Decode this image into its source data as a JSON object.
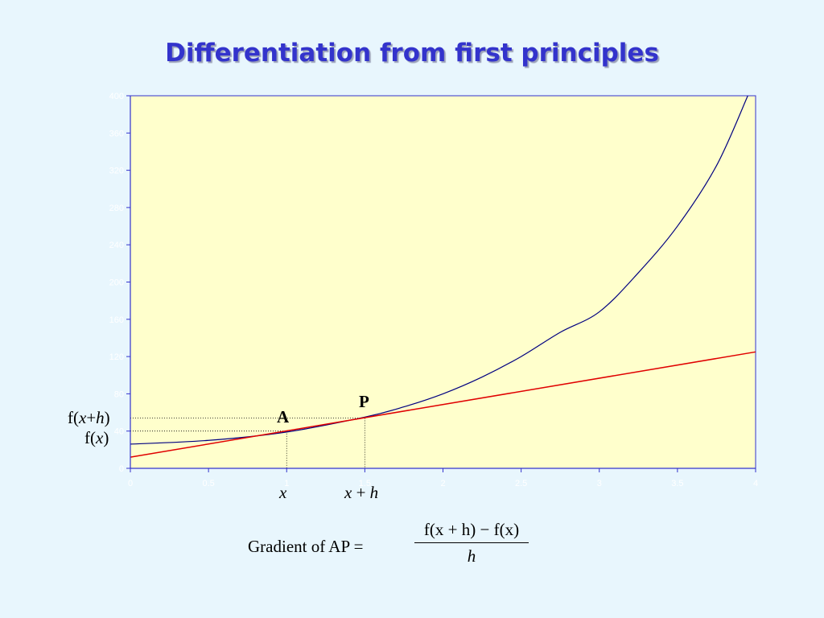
{
  "title": "Differentiation from first principles",
  "chart": {
    "type": "line",
    "x_range": [
      0,
      4
    ],
    "y_range": [
      0,
      400
    ],
    "y_ticks": [
      0,
      40,
      80,
      120,
      160,
      200,
      240,
      280,
      320,
      360,
      400
    ],
    "x_ticks": [
      0,
      0.5,
      1,
      1.5,
      2,
      2.5,
      3,
      3.5,
      4
    ],
    "colors": {
      "plot_bg": "#ffffcc",
      "axis": "#3333cc",
      "curve": "#000080",
      "tangent_line": "#e00000",
      "guides": "#000000",
      "tick_label": "#ffffff"
    },
    "curve_points": [
      [
        0,
        26
      ],
      [
        0.5,
        30
      ],
      [
        1,
        39
      ],
      [
        1.5,
        55
      ],
      [
        1.75,
        66
      ],
      [
        2,
        80
      ],
      [
        2.25,
        98
      ],
      [
        2.5,
        120
      ],
      [
        2.75,
        146
      ],
      [
        3,
        168
      ],
      [
        3.25,
        210
      ],
      [
        3.5,
        260
      ],
      [
        3.75,
        325
      ],
      [
        3.95,
        400
      ]
    ],
    "secant_line": [
      [
        0,
        12
      ],
      [
        4,
        125
      ]
    ],
    "point_A": {
      "x": 1,
      "y": 40
    },
    "point_P": {
      "x": 1.5,
      "y": 54
    }
  },
  "labels": {
    "A": "A",
    "P": "P",
    "fxh_prefix": "f(",
    "fxh_var": "x",
    "fxh_plus": "+",
    "fxh_h": "h",
    "fxh_suffix": ")",
    "fx_prefix": "f(",
    "fx_var": "x",
    "fx_suffix": ")",
    "x_axis_x": "x",
    "x_axis_xh_x": "x",
    "x_axis_xh_plus": " + ",
    "x_axis_xh_h": "h"
  },
  "formula": {
    "left": "Gradient of AP  =",
    "numerator": "f(x + h) − f(x)",
    "denominator": "h"
  }
}
